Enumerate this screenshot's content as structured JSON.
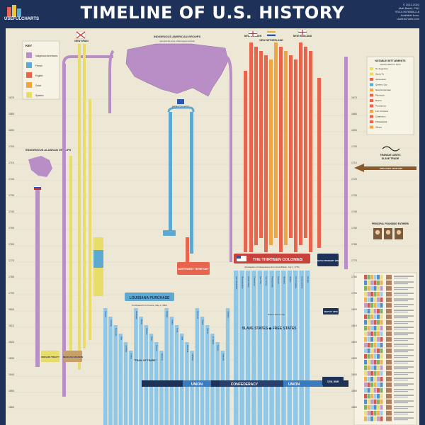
{
  "header": {
    "title": "TIMELINE OF U.S. HISTORY",
    "logo_text": "USEFULCHARTS",
    "credits": [
      "© 2013-2024",
      "Matt Baker, PhD",
      "978-0-9978586-2-8",
      "Available from:",
      "UsefulCharts.com"
    ]
  },
  "key": {
    "title": "KEY",
    "items": [
      {
        "label": "Indigenous Americans",
        "color": "#b98ec7"
      },
      {
        "label": "French",
        "color": "#5ea9cf"
      },
      {
        "label": "English",
        "color": "#e8644c"
      },
      {
        "label": "Dutch",
        "color": "#f0a640"
      },
      {
        "label": "Spanish",
        "color": "#e8dc6a"
      }
    ]
  },
  "labels": {
    "indigenous_groups": "INDIGENOUS AMERICAN GROUPS",
    "indigenous_note": "(around the time of European arrival)",
    "alaskan_groups": "INDIGENOUS ALASKAN GROUPS",
    "new_spain": "NEW SPAIN",
    "new_france": "NEW FRANCE",
    "new_sweden": "NEW SWEDEN",
    "new_netherland": "NEW NETHERLAND",
    "new_england": "NEW ENGLAND",
    "thirteen_colonies": "THE THIRTEEN COLONIES",
    "thirteen_note": "(Declaration of Independence from Great Britain, July 4, 1776)",
    "louisiana_purchase": "LOUISIANA PURCHASE",
    "louisiana_note": "Purchased from France, May 2, 1803",
    "northwest_territory": "NORTHWEST TERRITORY",
    "oregon_treaty": "OREGON TREATY",
    "mexican_cession": "MEXICAN CESSION",
    "revolutionary_war": "REVOLUTIONARY WAR",
    "slave_free": "SLAVE STATES ◆ FREE STATES",
    "trail_of_tears": "\"TRAIL OF TEARS\"",
    "mason_dixon": "Mason-Dixon Line",
    "notable_settlements": "NOTABLE SETTLEMENTS",
    "settlements_sub": "FROM 1565 TO 1670",
    "transatlantic": "TRANSATLANTIC",
    "slave_trade": "SLAVE TRADE",
    "enslaved_africans": "ENSLAVED AFRICANS",
    "founding_fathers": "PRINCIPAL FOUNDING FATHERS",
    "map_of_1853": "MAP OF 1853",
    "civil_war": "CIVIL WAR",
    "union": "UNION",
    "confederacy": "CONFEDERACY"
  },
  "years": [
    "1670",
    "1680",
    "1690",
    "1700",
    "1710",
    "1720",
    "1730",
    "1740",
    "1750",
    "1760",
    "1770",
    "1780",
    "1790",
    "1800",
    "1810",
    "1820",
    "1830",
    "1840",
    "1850",
    "1860",
    "1870"
  ],
  "settlements": [
    {
      "name": "St. Augustine",
      "color": "#e8dc6a"
    },
    {
      "name": "Santa Fe",
      "color": "#e8dc6a"
    },
    {
      "name": "Jamestown",
      "color": "#e8644c"
    },
    {
      "name": "Quebec City",
      "color": "#5ea9cf"
    },
    {
      "name": "New Amsterdam",
      "color": "#f0a640"
    },
    {
      "name": "Plymouth",
      "color": "#e8644c"
    },
    {
      "name": "Boston",
      "color": "#e8644c"
    },
    {
      "name": "Providence",
      "color": "#e8644c"
    },
    {
      "name": "Fort Christina",
      "color": "#f0a640"
    },
    {
      "name": "Charleston",
      "color": "#e8644c"
    },
    {
      "name": "Philadelphia",
      "color": "#e8644c"
    },
    {
      "name": "Albany",
      "color": "#f0a640"
    }
  ],
  "colonies": [
    "New Hampshire",
    "Massachusetts",
    "Rhode Island",
    "Connecticut",
    "New York",
    "New Jersey",
    "Pennsylvania",
    "Delaware",
    "Maryland",
    "Virginia",
    "North Carolina",
    "South Carolina",
    "Georgia"
  ],
  "states": [
    "Vermont",
    "Kentucky",
    "Tennessee",
    "Ohio",
    "Louisiana",
    "Indiana",
    "Mississippi",
    "Illinois",
    "Alabama",
    "Maine",
    "Missouri",
    "Arkansas",
    "Michigan",
    "Florida",
    "Texas",
    "Iowa",
    "Wisconsin",
    "California",
    "Minnesota",
    "Oregon",
    "Kansas",
    "W. Virginia",
    "Nevada",
    "Nebraska",
    "Colorado"
  ],
  "colors": {
    "background": "#ede8d6",
    "border": "#1e3158",
    "indigenous": "#b98ec7",
    "french": "#5ea9cf",
    "english": "#e8644c",
    "dutch": "#f0a640",
    "spanish": "#e8dc6a",
    "states": "#8ec7e8",
    "union": "#3a7bbf",
    "confederacy": "#2a3e6e"
  }
}
